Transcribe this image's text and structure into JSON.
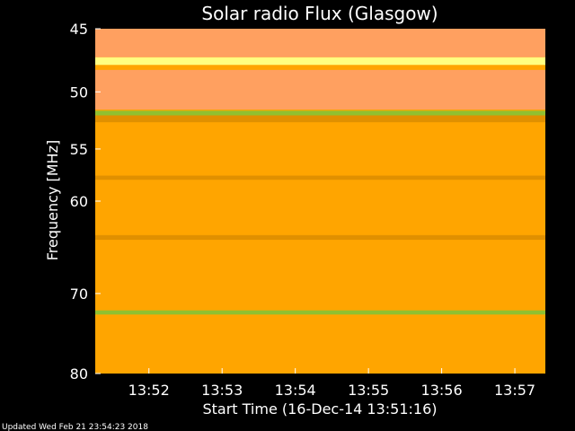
{
  "chart_data": {
    "type": "heatmap",
    "title": "Solar radio Flux (Glasgow)",
    "ylabel": "Frequency [MHz]",
    "xlabel": "Start Time (16-Dec-14 13:51:16)",
    "footer": "Updated Wed Feb 21 23:54:23 2018",
    "y_scale": "log",
    "y_inverted": true,
    "ylim": [
      45,
      80
    ],
    "y_ticks": [
      45,
      50,
      55,
      60,
      70,
      80
    ],
    "y_tick_labels": [
      "45",
      "50",
      "55",
      "60",
      "70",
      "80"
    ],
    "x_start_seconds": 3076,
    "x_end_seconds": 3445,
    "x_ticks_seconds": [
      3120,
      3180,
      3240,
      3300,
      3360,
      3420
    ],
    "x_tick_labels": [
      "13:52",
      "13:53",
      "13:54",
      "13:55",
      "13:56",
      "13:57"
    ],
    "colors": {
      "background": "#ffa500",
      "band_pink": "#ffa060",
      "band_bright": "#ffff80",
      "band_green": "#90c030",
      "band_dark": "#e09000"
    },
    "bands_mhz": [
      {
        "from": 45,
        "to": 47.2,
        "kind": "pink"
      },
      {
        "from": 47.2,
        "to": 47.8,
        "kind": "bright"
      },
      {
        "from": 48.2,
        "to": 51.5,
        "kind": "pink"
      },
      {
        "from": 51.6,
        "to": 52.0,
        "kind": "green"
      },
      {
        "from": 52.0,
        "to": 52.6,
        "kind": "dark"
      },
      {
        "from": 57.5,
        "to": 57.9,
        "kind": "dark"
      },
      {
        "from": 63.5,
        "to": 64.0,
        "kind": "dark"
      },
      {
        "from": 72.0,
        "to": 72.5,
        "kind": "green"
      }
    ]
  }
}
